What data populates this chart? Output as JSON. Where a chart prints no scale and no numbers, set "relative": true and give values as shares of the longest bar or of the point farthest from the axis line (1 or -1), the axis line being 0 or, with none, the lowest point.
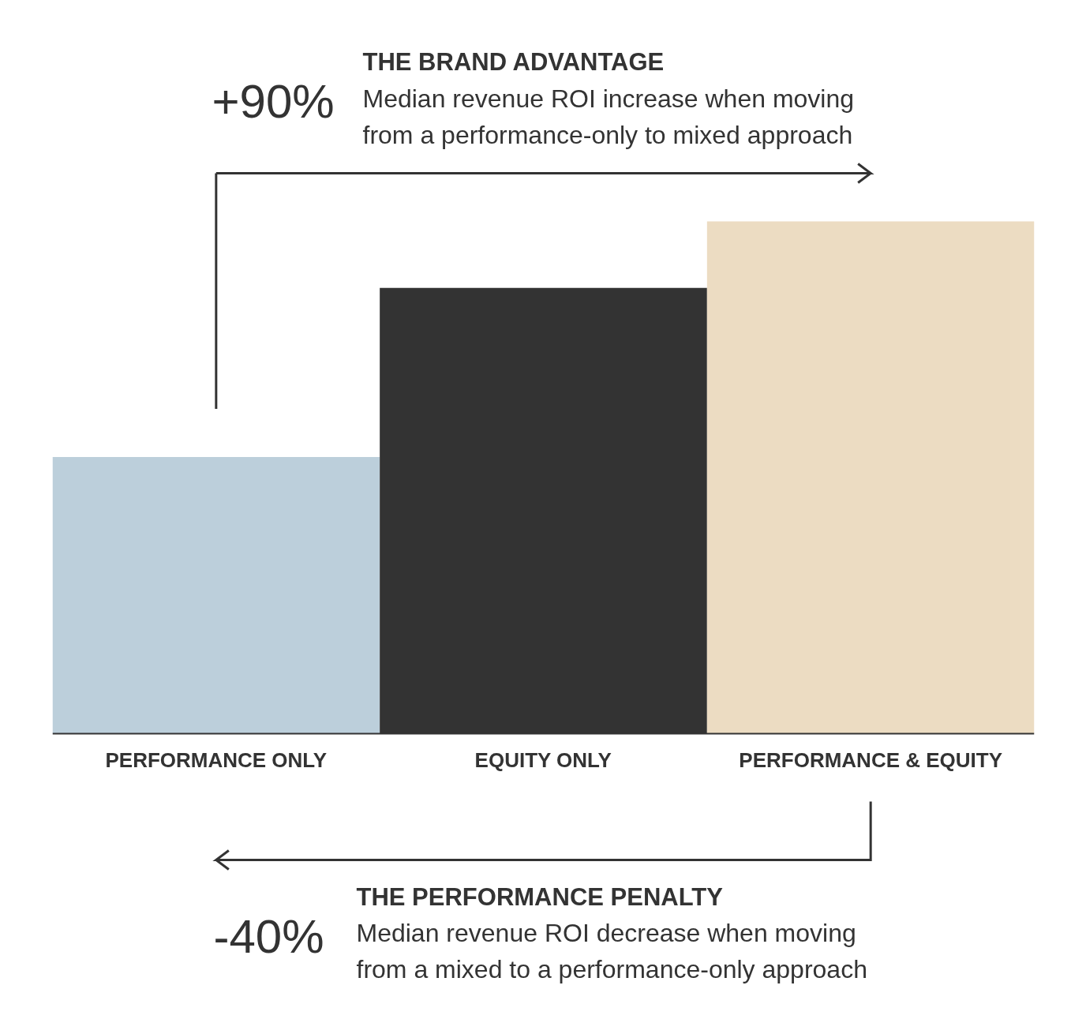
{
  "chart_data": {
    "type": "bar",
    "relative": true,
    "categories": [
      "PERFORMANCE ONLY",
      "EQUITY ONLY",
      "PERFORMANCE & EQUITY"
    ],
    "values": [
      0.54,
      0.87,
      1
    ],
    "colors": [
      "#bccfdb",
      "#333333",
      "#ecdcc2"
    ],
    "annotations": [
      "THE BRAND ADVANTAGE",
      "+90%",
      "Median revenue ROI increase when moving\nfrom a performance-only to mixed approach",
      "THE PERFORMANCE PENALTY",
      "-40%",
      "Median revenue ROI decrease when moving\nfrom a mixed to a performance-only approach"
    ]
  }
}
